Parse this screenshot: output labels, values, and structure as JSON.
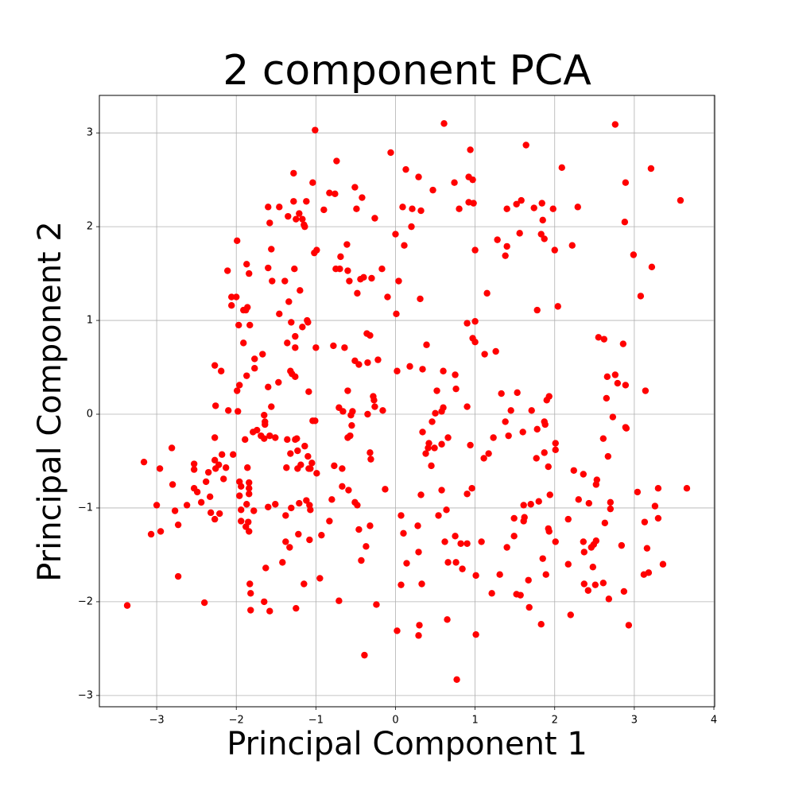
{
  "chart_data": {
    "type": "scatter",
    "title": "2 component PCA",
    "x_label": "Principal Component 1",
    "y_label": "Principal Component 2",
    "color": "red",
    "grid": true,
    "xlim": [
      -3.72,
      4.01
    ],
    "ylim": [
      -3.12,
      3.4
    ],
    "xticks": [
      {
        "value": -3,
        "label": "−3"
      },
      {
        "value": -2,
        "label": "−2"
      },
      {
        "value": -1,
        "label": "−1"
      },
      0,
      1,
      2,
      3,
      4
    ],
    "yticks": [
      {
        "value": -3,
        "label": "−3"
      },
      {
        "value": -2,
        "label": "−2"
      },
      {
        "value": -1,
        "label": "−1"
      },
      0,
      1,
      2,
      3
    ],
    "x": [
      -3.37,
      -3.16,
      -3.07,
      -3.0,
      -2.96,
      -2.95,
      -2.81,
      -2.8,
      -2.77,
      -2.73,
      -2.73,
      -2.62,
      -2.53,
      -2.53,
      -2.53,
      -2.49,
      -2.44,
      -2.4,
      -2.38,
      -2.35,
      -2.33,
      -2.32,
      -2.27,
      -2.26,
      -2.27,
      -2.27,
      -2.26,
      -2.27,
      -2.22,
      -2.21,
      -2.19,
      -2.18,
      -2.16,
      -2.13,
      -2.11,
      -2.1,
      -2.06,
      -2.06,
      -2.04,
      -2.0,
      -1.99,
      -1.99,
      -1.98,
      -1.97,
      -1.96,
      -1.96,
      -1.94,
      -1.96,
      -1.94,
      -1.94,
      -1.91,
      -1.91,
      -1.88,
      -1.89,
      -1.87,
      -1.87,
      -1.86,
      -1.86,
      -1.88,
      -1.87,
      -1.85,
      -1.84,
      -1.84,
      -1.84,
      -1.84,
      -1.84,
      -1.83,
      -1.83,
      -1.82,
      -1.82,
      -1.79,
      -1.78,
      -1.77,
      -1.77,
      -1.74,
      -1.69,
      -1.67,
      -1.65,
      -1.65,
      -1.65,
      -1.64,
      -1.64,
      -1.63,
      -1.6,
      -1.6,
      -1.6,
      -1.6,
      -1.58,
      -1.58,
      -1.58,
      -1.56,
      -1.56,
      -1.55,
      -1.51,
      -1.51,
      -1.47,
      -1.46,
      -1.46,
      -1.42,
      -1.39,
      -1.38,
      -1.38,
      -1.36,
      -1.36,
      -1.37,
      -1.35,
      -1.34,
      -1.33,
      -1.32,
      -1.32,
      -1.31,
      -1.31,
      -1.3,
      -1.28,
      -1.28,
      -1.27,
      -1.26,
      -1.26,
      -1.26,
      -1.26,
      -1.25,
      -1.25,
      -1.24,
      -1.23,
      -1.23,
      -1.22,
      -1.21,
      -1.21,
      -1.2,
      -1.19,
      -1.17,
      -1.17,
      -1.15,
      -1.15,
      -1.14,
      -1.14,
      -1.12,
      -1.12,
      -1.11,
      -1.1,
      -1.09,
      -1.1,
      -1.09,
      -1.08,
      -1.08,
      -1.07,
      -1.07,
      -1.05,
      -1.04,
      -1.04,
      -1.02,
      -1.01,
      -1.0,
      -1.01,
      -0.99,
      -0.99,
      -0.95,
      -0.93,
      -0.9,
      -0.83,
      -0.83,
      -0.8,
      -0.78,
      -0.77,
      -0.76,
      -0.75,
      -0.74,
      -0.7,
      -0.71,
      -0.71,
      -0.69,
      -0.67,
      -0.67,
      -0.66,
      -0.64,
      -0.61,
      -0.6,
      -0.6,
      -0.6,
      -0.59,
      -0.58,
      -0.57,
      -0.56,
      -0.55,
      -0.54,
      -0.51,
      -0.51,
      -0.51,
      -0.49,
      -0.48,
      -0.48,
      -0.46,
      -0.46,
      -0.44,
      -0.43,
      -0.42,
      -0.4,
      -0.39,
      -0.37,
      -0.36,
      -0.35,
      -0.35,
      -0.32,
      -0.32,
      -0.32,
      -0.31,
      -0.3,
      -0.28,
      -0.27,
      -0.26,
      -0.26,
      -0.24,
      -0.22,
      -0.17,
      -0.16,
      -0.13,
      -0.1,
      -0.06,
      0.0,
      0.01,
      0.02,
      0.02,
      0.04,
      0.07,
      0.07,
      0.09,
      0.1,
      0.11,
      0.13,
      0.14,
      0.18,
      0.2,
      0.21,
      0.28,
      0.29,
      0.29,
      0.3,
      0.29,
      0.31,
      0.32,
      0.32,
      0.33,
      0.34,
      0.34,
      0.38,
      0.39,
      0.41,
      0.42,
      0.45,
      0.46,
      0.47,
      0.49,
      0.5,
      0.52,
      0.54,
      0.58,
      0.58,
      0.58,
      0.6,
      0.61,
      0.6,
      0.62,
      0.64,
      0.65,
      0.66,
      0.66,
      0.74,
      0.75,
      0.75,
      0.76,
      0.76,
      0.77,
      0.8,
      0.82,
      0.84,
      0.9,
      0.9,
      0.9,
      0.9,
      0.92,
      0.92,
      0.94,
      0.94,
      0.96,
      0.97,
      0.97,
      0.98,
      1.0,
      1.0,
      1.0,
      1.01,
      1.01,
      1.08,
      1.11,
      1.12,
      1.15,
      1.17,
      1.21,
      1.23,
      1.26,
      1.28,
      1.31,
      1.33,
      1.38,
      1.38,
      1.4,
      1.4,
      1.4,
      1.42,
      1.45,
      1.49,
      1.49,
      1.52,
      1.52,
      1.53,
      1.56,
      1.57,
      1.58,
      1.6,
      1.61,
      1.61,
      1.62,
      1.64,
      1.67,
      1.68,
      1.7,
      1.71,
      1.74,
      1.77,
      1.78,
      1.78,
      1.8,
      1.83,
      1.83,
      1.84,
      1.85,
      1.85,
      1.87,
      1.87,
      1.87,
      1.88,
      1.89,
      1.9,
      1.92,
      1.92,
      1.93,
      1.93,
      1.94,
      1.98,
      2.0,
      2.01,
      2.01,
      2.01,
      2.04,
      2.09,
      2.17,
      2.17,
      2.2,
      2.22,
      2.24,
      2.29,
      2.3,
      2.36,
      2.36,
      2.37,
      2.37,
      2.42,
      2.43,
      2.46,
      2.48,
      2.49,
      2.51,
      2.52,
      2.52,
      2.53,
      2.55,
      2.62,
      2.61,
      2.61,
      2.63,
      2.66,
      2.65,
      2.67,
      2.68,
      2.7,
      2.7,
      2.73,
      2.76,
      2.76,
      2.79,
      2.84,
      2.86,
      2.87,
      2.88,
      2.89,
      2.89,
      2.89,
      2.9,
      2.93,
      2.99,
      3.04,
      3.08,
      3.12,
      3.13,
      3.14,
      3.16,
      3.18,
      3.21,
      3.22,
      3.26,
      3.3,
      3.3,
      3.36,
      3.58,
      3.66
    ],
    "values": [
      -2.04,
      -0.51,
      -1.28,
      -0.97,
      -0.58,
      -1.25,
      -0.36,
      -0.75,
      -1.03,
      -1.18,
      -1.73,
      -0.97,
      -0.53,
      -0.59,
      -0.79,
      -0.83,
      -0.94,
      -2.01,
      -0.72,
      -0.62,
      -0.88,
      -1.05,
      0.52,
      0.09,
      -0.25,
      -0.49,
      -0.58,
      -1.12,
      -0.54,
      -1.06,
      0.46,
      -0.43,
      -0.69,
      -0.57,
      1.53,
      0.04,
      1.25,
      1.16,
      -0.43,
      1.25,
      1.85,
      0.25,
      0.03,
      0.95,
      0.31,
      -0.72,
      -0.77,
      -0.87,
      -1.02,
      -1.14,
      0.76,
      1.11,
      1.11,
      -0.27,
      1.6,
      0.41,
      1.14,
      -0.57,
      -1.2,
      -0.96,
      -1.15,
      1.5,
      -0.73,
      -0.79,
      -0.85,
      -1.25,
      0.95,
      -1.81,
      -2.09,
      -1.91,
      -0.19,
      -1.03,
      0.49,
      0.59,
      -0.17,
      -0.23,
      0.64,
      -0.26,
      -0.01,
      -2.0,
      -0.08,
      -0.11,
      -1.64,
      -0.99,
      0.29,
      1.56,
      2.21,
      -2.1,
      -0.23,
      2.04,
      1.76,
      0.08,
      1.42,
      -0.25,
      -0.96,
      0.34,
      1.07,
      2.21,
      -1.58,
      1.42,
      -1.36,
      -1.08,
      0.76,
      -0.27,
      -0.57,
      2.11,
      1.2,
      -1.42,
      0.46,
      -0.42,
      -1.0,
      0.98,
      0.43,
      2.57,
      2.27,
      1.55,
      0.83,
      0.71,
      0.4,
      -0.27,
      2.08,
      -2.07,
      -0.26,
      -0.58,
      -0.39,
      -1.28,
      2.14,
      -0.95,
      1.32,
      -0.54,
      0.93,
      2.08,
      2.02,
      -1.81,
      2.0,
      -0.34,
      2.27,
      -0.92,
      1.0,
      0.98,
      0.24,
      -0.45,
      -0.58,
      -0.97,
      -1.34,
      -0.58,
      -1.02,
      -0.52,
      2.47,
      -0.07,
      1.72,
      3.03,
      0.71,
      -0.07,
      1.75,
      -0.63,
      -1.75,
      -1.29,
      2.18,
      2.36,
      -1.14,
      -0.91,
      0.73,
      -0.55,
      2.35,
      1.55,
      2.7,
      1.55,
      0.07,
      -1.99,
      1.68,
      -0.58,
      -0.77,
      0.03,
      0.71,
      1.81,
      1.53,
      0.25,
      -0.25,
      -0.81,
      1.42,
      -0.23,
      -0.01,
      -0.12,
      0.03,
      0.57,
      -0.94,
      2.42,
      2.19,
      -0.97,
      1.29,
      0.53,
      -1.23,
      1.44,
      -1.56,
      2.31,
      1.46,
      -2.57,
      -1.41,
      0.86,
      0.55,
      0.0,
      0.84,
      -0.41,
      -1.19,
      -0.48,
      1.45,
      0.19,
      0.15,
      2.09,
      0.08,
      -2.03,
      0.58,
      1.55,
      0.04,
      -0.8,
      1.25,
      2.79,
      1.92,
      1.07,
      0.46,
      -2.31,
      1.42,
      -1.08,
      -1.82,
      2.21,
      -1.27,
      1.8,
      2.61,
      -1.59,
      0.51,
      2.0,
      2.19,
      -1.19,
      2.53,
      -1.47,
      -2.25,
      -2.36,
      1.23,
      2.17,
      -0.86,
      -1.81,
      0.48,
      -0.19,
      -0.42,
      0.74,
      -0.36,
      -0.31,
      -0.55,
      -0.08,
      2.39,
      -0.36,
      0.01,
      0.25,
      -1.08,
      -0.32,
      -0.81,
      0.03,
      0.07,
      3.1,
      0.46,
      -1.36,
      -1.02,
      -2.19,
      -1.58,
      -0.25,
      2.47,
      -1.3,
      0.42,
      0.27,
      -1.58,
      -2.83,
      2.19,
      -1.38,
      -1.65,
      0.97,
      0.08,
      -0.85,
      -1.38,
      2.26,
      2.53,
      -0.33,
      2.82,
      -0.79,
      2.5,
      0.81,
      2.25,
      1.75,
      0.99,
      0.77,
      -1.72,
      -2.35,
      -1.36,
      -0.47,
      0.64,
      1.29,
      -0.42,
      -1.91,
      -0.25,
      0.67,
      1.86,
      -1.71,
      0.22,
      1.69,
      -0.08,
      1.79,
      -1.42,
      2.19,
      -0.23,
      0.04,
      -1.3,
      -1.11,
      -1.92,
      2.24,
      0.23,
      1.93,
      -1.93,
      2.28,
      -0.19,
      -0.97,
      -1.14,
      -1.1,
      2.87,
      -1.77,
      -2.06,
      -0.96,
      0.04,
      2.2,
      -0.47,
      1.11,
      -0.16,
      -0.93,
      1.92,
      -2.24,
      2.25,
      -1.54,
      2.07,
      1.87,
      -0.41,
      -0.08,
      -0.11,
      -1.71,
      0.15,
      -0.56,
      -1.22,
      0.19,
      -1.25,
      -0.86,
      2.19,
      1.75,
      -0.31,
      -1.36,
      -0.38,
      1.15,
      2.63,
      -1.12,
      -1.6,
      -2.14,
      1.8,
      -0.6,
      2.21,
      -0.91,
      -0.64,
      -1.36,
      -1.47,
      -1.81,
      -1.88,
      -0.95,
      -1.42,
      -1.63,
      -1.39,
      -1.82,
      -1.35,
      -0.75,
      -0.7,
      0.82,
      0.8,
      -0.26,
      -1.8,
      -1.16,
      0.4,
      0.17,
      -0.45,
      -1.97,
      -0.94,
      -1.01,
      -0.03,
      3.09,
      0.42,
      0.33,
      -1.4,
      0.75,
      -1.89,
      2.05,
      2.47,
      0.31,
      -0.14,
      -0.15,
      -2.25,
      1.7,
      -0.83,
      1.26,
      -1.71,
      -1.15,
      0.25,
      -1.43,
      -1.69,
      2.62,
      1.57,
      -0.98,
      -0.79,
      -1.11,
      -1.6,
      2.28,
      -0.79
    ]
  }
}
